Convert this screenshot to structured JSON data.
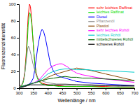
{
  "chart_data": {
    "type": "line",
    "xlabel": "Wellenlänge / nm",
    "ylabel": "Fluoreszenzintensität",
    "xlim": [
      300,
      700
    ],
    "ylim": [
      0,
      100
    ],
    "xticks": [
      300,
      350,
      400,
      450,
      500,
      550,
      600,
      650,
      700
    ],
    "yticks": [
      0,
      20,
      40,
      60,
      80,
      100
    ],
    "grid": false,
    "legend": "upper-right",
    "series": [
      {
        "name": "sehr leichtes Raffinat",
        "color": "#ff0000",
        "x": [
          300,
          310,
          315,
          320,
          325,
          330,
          332,
          335,
          337,
          340,
          342,
          345,
          347,
          350,
          353,
          356,
          360,
          365,
          370,
          375,
          380,
          390,
          400,
          420,
          440,
          460,
          480,
          500,
          550,
          600,
          650,
          700
        ],
        "values": [
          2,
          4,
          8,
          18,
          40,
          72,
          85,
          95,
          100,
          97,
          90,
          78,
          65,
          52,
          38,
          28,
          18,
          12,
          9,
          7,
          6,
          5,
          4,
          3,
          3,
          2,
          2,
          2,
          2,
          2,
          1,
          1
        ]
      },
      {
        "name": "leichtes Raffinat",
        "color": "#00dd00",
        "x": [
          300,
          310,
          315,
          320,
          325,
          330,
          332,
          335,
          337,
          340,
          342,
          345,
          348,
          350,
          353,
          356,
          360,
          365,
          370,
          375,
          380,
          390,
          400,
          420,
          440,
          460,
          480,
          500,
          550,
          600,
          650,
          700
        ],
        "values": [
          1,
          3,
          7,
          16,
          35,
          60,
          75,
          85,
          90,
          88,
          83,
          75,
          62,
          52,
          38,
          26,
          16,
          11,
          8,
          6,
          5,
          4,
          3,
          3,
          2,
          2,
          2,
          2,
          2,
          1,
          1,
          1
        ]
      },
      {
        "name": "Diesel",
        "color": "#0000ff",
        "x": [
          300,
          310,
          320,
          330,
          340,
          350,
          355,
          360,
          365,
          370,
          375,
          380,
          385,
          390,
          395,
          400,
          405,
          410,
          420,
          430,
          440,
          450,
          460,
          470,
          480,
          490,
          500,
          550,
          600,
          650,
          700
        ],
        "values": [
          1,
          2,
          3,
          4,
          6,
          12,
          22,
          35,
          48,
          58,
          66,
          70,
          68,
          62,
          54,
          45,
          36,
          28,
          20,
          16,
          14,
          13,
          12,
          11,
          10,
          9,
          8,
          6,
          5,
          4,
          3
        ]
      },
      {
        "name": "Pflanzenöl",
        "color": "#888888",
        "x": [
          300,
          310,
          318,
          322,
          326,
          330,
          333,
          336,
          339,
          342,
          345,
          348,
          352,
          356,
          360,
          366,
          372,
          378,
          385,
          395,
          410,
          430,
          460,
          500,
          550,
          600,
          650,
          700
        ],
        "values": [
          2,
          4,
          12,
          22,
          35,
          46,
          50,
          48,
          44,
          40,
          35,
          30,
          25,
          20,
          16,
          12,
          10,
          9,
          8,
          7,
          6,
          5,
          5,
          4,
          3,
          3,
          2,
          2
        ]
      },
      {
        "name": "Plastiol",
        "color": "#884400",
        "x": [
          300,
          310,
          320,
          330,
          340,
          350,
          360,
          370,
          380,
          390,
          400,
          420,
          440,
          460,
          480,
          500,
          550,
          600,
          650,
          700
        ],
        "values": [
          1,
          2,
          3,
          4,
          5,
          6,
          7,
          8,
          9,
          11,
          13,
          16,
          18,
          20,
          22,
          24,
          21,
          17,
          13,
          9
        ]
      },
      {
        "name": "sehr leichtes Rohöl",
        "color": "#ff00ff",
        "x": [
          300,
          310,
          320,
          330,
          340,
          350,
          360,
          370,
          380,
          390,
          400,
          415,
          430,
          440,
          450,
          460,
          470,
          480,
          490,
          500,
          520,
          550,
          600,
          650,
          700
        ],
        "values": [
          1,
          2,
          3,
          4,
          5,
          6,
          8,
          10,
          14,
          18,
          22,
          26,
          28,
          29,
          29,
          27,
          25,
          22,
          20,
          18,
          16,
          14,
          11,
          9,
          7
        ]
      },
      {
        "name": "leichtes Rohöl",
        "color": "#00cccc",
        "x": [
          300,
          310,
          320,
          330,
          340,
          350,
          360,
          370,
          380,
          390,
          400,
          420,
          440,
          460,
          480,
          500,
          520,
          540,
          560,
          580,
          600,
          650,
          700
        ],
        "values": [
          1,
          2,
          3,
          4,
          5,
          6,
          7,
          9,
          11,
          14,
          17,
          20,
          22,
          23,
          23,
          22,
          22,
          22,
          21,
          21,
          21,
          20,
          19
        ]
      },
      {
        "name": "mittelschweres Rohöl",
        "color": "#006600",
        "x": [
          300,
          310,
          320,
          330,
          340,
          350,
          360,
          370,
          380,
          390,
          400,
          420,
          440,
          460,
          480,
          500,
          520,
          550,
          600,
          650,
          700
        ],
        "values": [
          1,
          2,
          3,
          4,
          5,
          6,
          7,
          8,
          9,
          10,
          11,
          12,
          13,
          14,
          13,
          13,
          12,
          12,
          11,
          10,
          9
        ]
      },
      {
        "name": "schweres Rohöl",
        "color": "#000000",
        "x": [
          300,
          310,
          320,
          330,
          340,
          350,
          360,
          370,
          380,
          390,
          400,
          420,
          440,
          460,
          480,
          500,
          520,
          550,
          600,
          650,
          700
        ],
        "values": [
          1,
          1,
          2,
          3,
          4,
          4,
          4,
          4,
          4,
          4,
          4,
          4,
          4,
          4,
          4,
          4,
          4,
          4,
          3,
          3,
          3
        ]
      }
    ]
  }
}
